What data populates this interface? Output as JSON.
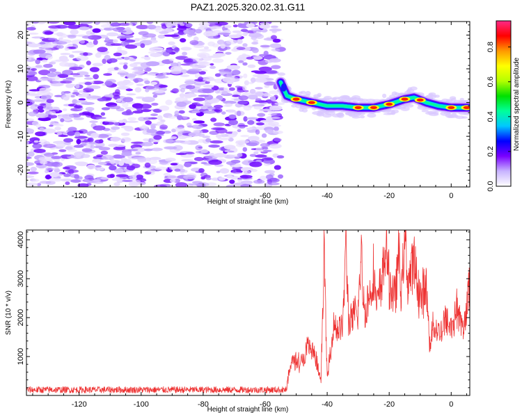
{
  "title": "PAZ1.2025.320.02.31.G11",
  "chart_data": [
    {
      "type": "heatmap",
      "xlabel": "Height of straight line (km)",
      "ylabel": "Frequency (Hz)",
      "xlim": [
        -137,
        6
      ],
      "ylim": [
        -25,
        24
      ],
      "xticks": [
        -120,
        -100,
        -80,
        -60,
        -40,
        -20,
        0
      ],
      "yticks": [
        -20,
        -10,
        0,
        10,
        20
      ],
      "noise_region": [
        -137,
        -55
      ],
      "ridge": [
        {
          "x": -55,
          "y": 6
        },
        {
          "x": -53,
          "y": 2
        },
        {
          "x": -50,
          "y": 1
        },
        {
          "x": -45,
          "y": 0
        },
        {
          "x": -40,
          "y": -1
        },
        {
          "x": -35,
          "y": -1
        },
        {
          "x": -30,
          "y": -1.5
        },
        {
          "x": -25,
          "y": -1.5
        },
        {
          "x": -20,
          "y": -0.5
        },
        {
          "x": -15,
          "y": 1
        },
        {
          "x": -12,
          "y": 1.5
        },
        {
          "x": -8,
          "y": 0
        },
        {
          "x": -4,
          "y": -1
        },
        {
          "x": 0,
          "y": -1.5
        },
        {
          "x": 6,
          "y": -1.5
        }
      ],
      "hot_spots": [
        -50,
        -45,
        -30,
        -25,
        -20,
        -15,
        -10,
        0,
        5
      ],
      "colorbar": {
        "label": "Normalized spectral amplitude",
        "range": [
          0,
          0.95
        ],
        "ticks": [
          "0.0",
          "0.2",
          "0.4",
          "0.6",
          "0.8"
        ],
        "colors": [
          "#ffffff",
          "#c8b4ff",
          "#7a00ff",
          "#0000ff",
          "#00c8ff",
          "#00ff9a",
          "#00e000",
          "#b4ff00",
          "#ffff00",
          "#ff9900",
          "#ff0000",
          "#ff2a88"
        ]
      }
    },
    {
      "type": "line",
      "xlabel": "Height of straight line (km)",
      "ylabel": "SNR (10 * v/v)",
      "xlim": [
        -137,
        6
      ],
      "ylim": [
        0,
        4250
      ],
      "xticks": [
        -120,
        -100,
        -80,
        -60,
        -40,
        -20,
        0
      ],
      "yticks": [
        1000,
        2000,
        3000,
        4000
      ],
      "color": "#ee3333",
      "series": [
        {
          "values": [
            {
              "x": -137,
              "y": 150
            },
            {
              "x": -120,
              "y": 150
            },
            {
              "x": -100,
              "y": 150
            },
            {
              "x": -80,
              "y": 150
            },
            {
              "x": -60,
              "y": 150
            },
            {
              "x": -53,
              "y": 200
            },
            {
              "x": -52,
              "y": 800
            },
            {
              "x": -50,
              "y": 950
            },
            {
              "x": -48,
              "y": 850
            },
            {
              "x": -46,
              "y": 1300
            },
            {
              "x": -44,
              "y": 1000
            },
            {
              "x": -42,
              "y": 400
            },
            {
              "x": -41,
              "y": 3700
            },
            {
              "x": -40,
              "y": 400
            },
            {
              "x": -38,
              "y": 1800
            },
            {
              "x": -35,
              "y": 1700
            },
            {
              "x": -34,
              "y": 4000
            },
            {
              "x": -33,
              "y": 1800
            },
            {
              "x": -30,
              "y": 2200
            },
            {
              "x": -29,
              "y": 3600
            },
            {
              "x": -28,
              "y": 2100
            },
            {
              "x": -26,
              "y": 2700
            },
            {
              "x": -25,
              "y": 3200
            },
            {
              "x": -24,
              "y": 2200
            },
            {
              "x": -22,
              "y": 3200
            },
            {
              "x": -21,
              "y": 3950
            },
            {
              "x": -20,
              "y": 2900
            },
            {
              "x": -18,
              "y": 2500
            },
            {
              "x": -17,
              "y": 3700
            },
            {
              "x": -16,
              "y": 2600
            },
            {
              "x": -15,
              "y": 4200
            },
            {
              "x": -14,
              "y": 2900
            },
            {
              "x": -12,
              "y": 3400
            },
            {
              "x": -10,
              "y": 2500
            },
            {
              "x": -8,
              "y": 2800
            },
            {
              "x": -7,
              "y": 1300
            },
            {
              "x": -6,
              "y": 1800
            },
            {
              "x": -4,
              "y": 1600
            },
            {
              "x": -2,
              "y": 1900
            },
            {
              "x": 0,
              "y": 1800
            },
            {
              "x": 1,
              "y": 2000
            },
            {
              "x": 2,
              "y": 2300
            },
            {
              "x": 3,
              "y": 1900
            },
            {
              "x": 4,
              "y": 1500
            },
            {
              "x": 5,
              "y": 2500
            },
            {
              "x": 6,
              "y": 2700
            }
          ]
        }
      ]
    }
  ]
}
